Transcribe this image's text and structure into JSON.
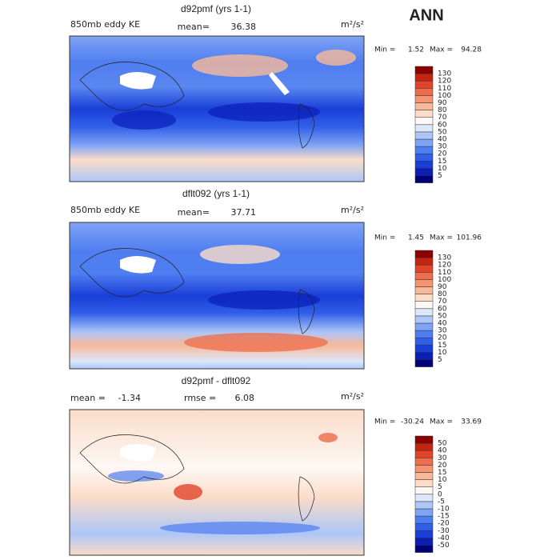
{
  "season": "ANN",
  "panels": [
    {
      "title": "d92pmf (yrs 1-1)",
      "field": "850mb eddy KE",
      "stat1_label": "mean=",
      "stat1": "36.38",
      "units": "m²/s²",
      "min_label": "Min =",
      "min": "1.52",
      "max_label": "Max =",
      "max": "94.28",
      "levels": [
        5,
        10,
        15,
        20,
        30,
        40,
        50,
        60,
        70,
        80,
        90,
        100,
        110,
        120,
        130
      ],
      "colors": [
        "#00007a",
        "#0a1fb8",
        "#1a3ed8",
        "#2f5ee8",
        "#4f7ef0",
        "#7fa3f5",
        "#adc6f8",
        "#dbe7fb",
        "#fdf8f4",
        "#fbdcc8",
        "#f8b99a",
        "#f49470",
        "#ee6c4a",
        "#e0452a",
        "#c42412",
        "#8b0000"
      ]
    },
    {
      "title": "dflt092 (yrs 1-1)",
      "field": "850mb eddy KE",
      "stat1_label": "mean=",
      "stat1": "37.71",
      "units": "m²/s²",
      "min_label": "Min =",
      "min": "1.45",
      "max_label": "Max =",
      "max": "101.96",
      "levels": [
        5,
        10,
        15,
        20,
        30,
        40,
        50,
        60,
        70,
        80,
        90,
        100,
        110,
        120,
        130
      ],
      "colors": [
        "#00007a",
        "#0a1fb8",
        "#1a3ed8",
        "#2f5ee8",
        "#4f7ef0",
        "#7fa3f5",
        "#adc6f8",
        "#dbe7fb",
        "#fdf8f4",
        "#fbdcc8",
        "#f8b99a",
        "#f49470",
        "#ee6c4a",
        "#e0452a",
        "#c42412",
        "#8b0000"
      ]
    },
    {
      "title": "d92pmf - dflt092",
      "stat1_label": "mean =",
      "stat1": "-1.34",
      "stat2_label": "rmse =",
      "stat2": "6.08",
      "units": "m²/s²",
      "min_label": "Min =",
      "min": "-30.24",
      "max_label": "Max =",
      "max": "33.69",
      "levels": [
        -50,
        -40,
        -30,
        -20,
        -15,
        -10,
        -5,
        0,
        5,
        10,
        15,
        20,
        30,
        40,
        50
      ],
      "colors": [
        "#00007a",
        "#0a1fb8",
        "#1a3ed8",
        "#2f5ee8",
        "#4f7ef0",
        "#7fa3f5",
        "#adc6f8",
        "#dbe7fb",
        "#fdf8f4",
        "#fbdcc8",
        "#f8b99a",
        "#f49470",
        "#ee6c4a",
        "#e0452a",
        "#c42412",
        "#8b0000"
      ]
    }
  ]
}
